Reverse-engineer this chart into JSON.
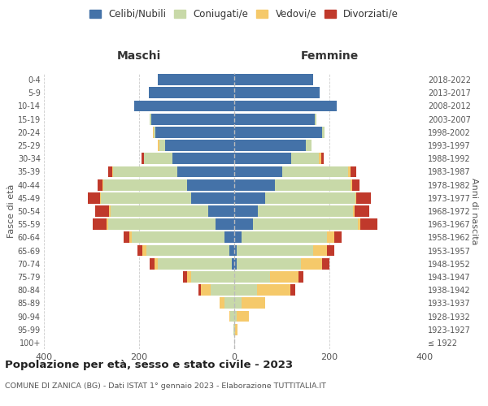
{
  "age_groups": [
    "100+",
    "95-99",
    "90-94",
    "85-89",
    "80-84",
    "75-79",
    "70-74",
    "65-69",
    "60-64",
    "55-59",
    "50-54",
    "45-49",
    "40-44",
    "35-39",
    "30-34",
    "25-29",
    "20-24",
    "15-19",
    "10-14",
    "5-9",
    "0-4"
  ],
  "birth_years": [
    "≤ 1922",
    "1923-1927",
    "1928-1932",
    "1933-1937",
    "1938-1942",
    "1943-1947",
    "1948-1952",
    "1953-1957",
    "1958-1962",
    "1963-1967",
    "1968-1972",
    "1973-1977",
    "1978-1982",
    "1983-1987",
    "1988-1992",
    "1993-1997",
    "1998-2002",
    "2003-2007",
    "2008-2012",
    "2013-2017",
    "2018-2022"
  ],
  "males": {
    "celibi": [
      0,
      0,
      0,
      0,
      0,
      0,
      5,
      10,
      20,
      40,
      55,
      90,
      100,
      120,
      130,
      145,
      165,
      175,
      210,
      180,
      160
    ],
    "coniugati": [
      0,
      2,
      8,
      20,
      50,
      90,
      155,
      175,
      195,
      225,
      205,
      190,
      175,
      135,
      60,
      12,
      4,
      2,
      0,
      0,
      0
    ],
    "vedovi": [
      0,
      0,
      3,
      10,
      20,
      10,
      8,
      8,
      5,
      3,
      3,
      2,
      2,
      2,
      0,
      3,
      2,
      0,
      0,
      0,
      0
    ],
    "divorziati": [
      0,
      0,
      0,
      0,
      5,
      8,
      10,
      10,
      12,
      30,
      30,
      25,
      10,
      8,
      5,
      0,
      0,
      0,
      0,
      0,
      0
    ]
  },
  "females": {
    "nubili": [
      0,
      0,
      0,
      0,
      0,
      0,
      5,
      5,
      15,
      40,
      50,
      65,
      85,
      100,
      120,
      150,
      185,
      170,
      215,
      180,
      165
    ],
    "coniugate": [
      0,
      2,
      5,
      15,
      48,
      75,
      135,
      160,
      180,
      220,
      200,
      190,
      160,
      140,
      58,
      13,
      4,
      2,
      0,
      0,
      0
    ],
    "vedove": [
      0,
      5,
      25,
      50,
      70,
      60,
      45,
      30,
      15,
      5,
      3,
      2,
      3,
      5,
      5,
      0,
      0,
      0,
      0,
      0,
      0
    ],
    "divorziate": [
      0,
      0,
      0,
      0,
      10,
      10,
      15,
      15,
      15,
      35,
      30,
      30,
      15,
      12,
      5,
      0,
      0,
      0,
      0,
      0,
      0
    ]
  },
  "colors": {
    "celibi": "#4472a8",
    "coniugati": "#c8d9a8",
    "vedovi": "#f5c96a",
    "divorziati": "#c0392b"
  },
  "title": "Popolazione per età, sesso e stato civile - 2023",
  "subtitle": "COMUNE DI ZANICA (BG) - Dati ISTAT 1° gennaio 2023 - Elaborazione TUTTITALIA.IT",
  "xlabel_left": "Maschi",
  "xlabel_right": "Femmine",
  "ylabel": "Fasce di età",
  "ylabel_right": "Anni di nascita",
  "legend_labels": [
    "Celibi/Nubili",
    "Coniugati/e",
    "Vedovi/e",
    "Divorziati/e"
  ],
  "xlim": 400,
  "bg_color": "#ffffff",
  "grid_color": "#cccccc"
}
